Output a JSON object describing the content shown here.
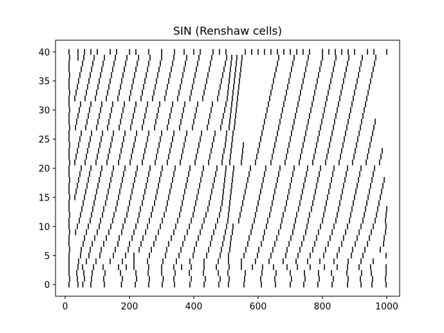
{
  "chart_data": {
    "type": "raster",
    "title": "SIN (Renshaw cells)",
    "xlabel": "",
    "ylabel": "",
    "xlim": [
      -30,
      1040
    ],
    "ylim": [
      -2,
      42
    ],
    "x_ticks": [
      0,
      200,
      400,
      600,
      800,
      1000
    ],
    "x_tick_labels": [
      "0",
      "200",
      "400",
      "600",
      "800",
      "1000"
    ],
    "y_ticks": [
      0,
      5,
      10,
      15,
      20,
      25,
      30,
      35,
      40
    ],
    "y_tick_labels": [
      "0",
      "5",
      "10",
      "15",
      "20",
      "25",
      "30",
      "35",
      "40"
    ],
    "grid": false,
    "color": "#000000",
    "neurons": 41,
    "spike_trains": [
      {
        "neuron": 0,
        "times": [
          12,
          40,
          55,
          80,
          122,
          175,
          218,
          260,
          302,
          340,
          388,
          432,
          478,
          508,
          556,
          610,
          654,
          700,
          742,
          786,
          830,
          878,
          920,
          954,
          998
        ]
      },
      {
        "neuron": 1,
        "times": [
          14,
          38,
          60,
          82,
          120,
          178,
          222,
          262,
          305,
          338,
          392,
          436,
          482,
          510,
          558,
          608,
          652,
          704,
          746,
          790,
          834,
          880,
          918,
          956,
          996
        ]
      },
      {
        "neuron": 2,
        "times": [
          12,
          36,
          58,
          84,
          124,
          172,
          220,
          258,
          300,
          342,
          386,
          430,
          476,
          506,
          560,
          612,
          656,
          700,
          744,
          788,
          828,
          876,
          922,
          952,
          998
        ]
      },
      {
        "neuron": 3,
        "times": [
          12,
          40,
          54,
          88,
          118,
          166,
          190,
          214,
          260,
          300,
          338,
          362,
          392,
          432,
          470,
          510,
          548,
          582,
          614,
          648,
          690,
          722,
          762,
          806,
          846,
          878,
          914,
          950,
          998
        ]
      },
      {
        "neuron": 4,
        "times": [
          12,
          42,
          66,
          96,
          140,
          178,
          214,
          256,
          304,
          346,
          388,
          432,
          476,
          508,
          548,
          592,
          634,
          678,
          718,
          754,
          792,
          836,
          880,
          920,
          958
        ]
      },
      {
        "neuron": 5,
        "times": [
          12,
          48,
          74,
          108,
          150,
          188,
          214,
          262,
          312,
          354,
          398,
          440,
          482,
          508,
          556,
          598,
          640,
          686,
          724,
          762,
          804,
          846,
          890,
          926,
          998
        ]
      },
      {
        "neuron": 6,
        "times": [
          14,
          50,
          78,
          112,
          156,
          196,
          230,
          268,
          316,
          360,
          402,
          446,
          486,
          512,
          562,
          602,
          646,
          690,
          730,
          770,
          810,
          852,
          894,
          932,
          980
        ]
      },
      {
        "neuron": 7,
        "times": [
          12,
          56,
          84,
          120,
          164,
          200,
          236,
          276,
          322,
          366,
          408,
          452,
          490,
          514,
          568,
          610,
          652,
          696,
          736,
          776,
          818,
          860,
          902,
          940,
          990
        ]
      },
      {
        "neuron": 8,
        "times": [
          12,
          60,
          92,
          128,
          168,
          208,
          242,
          282,
          330,
          372,
          414,
          456,
          494,
          516,
          572,
          616,
          658,
          702,
          742,
          782,
          824,
          866,
          908,
          946,
          992
        ]
      },
      {
        "neuron": 9,
        "times": [
          14,
          32,
          66,
          100,
          136,
          176,
          214,
          250,
          290,
          338,
          380,
          420,
          462,
          498,
          520,
          578,
          620,
          664,
          708,
          748,
          788,
          830,
          872,
          914,
          952,
          996
        ]
      },
      {
        "neuron": 10,
        "times": [
          12,
          38,
          72,
          106,
          142,
          180,
          220,
          256,
          296,
          344,
          386,
          426,
          468,
          502,
          522,
          582,
          626,
          670,
          712,
          752,
          794,
          836,
          878,
          920,
          958,
          998
        ]
      },
      {
        "neuron": 11,
        "times": [
          12,
          44,
          78,
          110,
          148,
          186,
          226,
          262,
          302,
          350,
          392,
          432,
          474,
          506,
          540,
          588,
          630,
          674,
          716,
          756,
          800,
          842,
          884,
          926,
          964,
          996
        ]
      },
      {
        "neuron": 12,
        "times": [
          14,
          48,
          82,
          116,
          152,
          192,
          230,
          268,
          308,
          356,
          398,
          438,
          480,
          508,
          544,
          592,
          636,
          678,
          720,
          760,
          804,
          846,
          888,
          930,
          968,
          998
        ]
      },
      {
        "neuron": 13,
        "times": [
          12,
          52,
          86,
          120,
          158,
          196,
          234,
          272,
          314,
          360,
          402,
          444,
          484,
          510,
          548,
          596,
          640,
          684,
          726,
          766,
          808,
          850,
          892,
          934,
          972,
          1000
        ]
      },
      {
        "neuron": 14,
        "times": [
          12,
          56,
          90,
          126,
          162,
          200,
          240,
          278,
          318,
          364,
          406,
          448,
          488,
          512,
          552,
          600,
          644,
          688,
          730,
          770,
          812,
          854,
          896,
          938,
          976
        ]
      },
      {
        "neuron": 15,
        "times": [
          14,
          30,
          60,
          94,
          130,
          166,
          204,
          244,
          282,
          322,
          368,
          410,
          452,
          490,
          514,
          556,
          604,
          648,
          692,
          734,
          774,
          816,
          858,
          900,
          942,
          980
        ]
      },
      {
        "neuron": 16,
        "times": [
          12,
          34,
          64,
          98,
          134,
          170,
          208,
          248,
          286,
          326,
          372,
          414,
          456,
          492,
          516,
          560,
          608,
          652,
          696,
          738,
          778,
          820,
          862,
          904,
          946,
          984
        ]
      },
      {
        "neuron": 17,
        "times": [
          12,
          38,
          68,
          102,
          138,
          174,
          212,
          252,
          290,
          330,
          376,
          418,
          460,
          494,
          518,
          564,
          612,
          656,
          700,
          742,
          782,
          824,
          866,
          908,
          950,
          988
        ]
      },
      {
        "neuron": 18,
        "times": [
          14,
          42,
          72,
          106,
          142,
          178,
          216,
          256,
          294,
          334,
          380,
          422,
          464,
          496,
          520,
          568,
          616,
          660,
          704,
          746,
          786,
          828,
          870,
          912,
          954,
          992
        ]
      },
      {
        "neuron": 19,
        "times": [
          12,
          46,
          76,
          110,
          146,
          182,
          220,
          260,
          298,
          338,
          384,
          426,
          468,
          498,
          522,
          572,
          620,
          664,
          708,
          750,
          790,
          832,
          874,
          916,
          958
        ]
      },
      {
        "neuron": 20,
        "times": [
          12,
          50,
          80,
          114,
          150,
          186,
          224,
          264,
          302,
          342,
          388,
          430,
          472,
          500,
          524,
          576,
          624,
          668,
          712,
          754,
          794,
          836,
          878,
          920,
          962
        ]
      },
      {
        "neuron": 21,
        "times": [
          14,
          30,
          62,
          96,
          130,
          166,
          202,
          240,
          280,
          318,
          358,
          404,
          446,
          488,
          512,
          548,
          592,
          640,
          684,
          728,
          770,
          810,
          852,
          894,
          936,
          978
        ]
      },
      {
        "neuron": 22,
        "times": [
          12,
          34,
          66,
          100,
          134,
          170,
          206,
          244,
          284,
          322,
          362,
          408,
          450,
          490,
          514,
          550,
          596,
          644,
          688,
          732,
          774,
          814,
          856,
          898,
          940,
          982
        ]
      },
      {
        "neuron": 23,
        "times": [
          12,
          38,
          70,
          104,
          138,
          174,
          210,
          248,
          288,
          326,
          366,
          412,
          454,
          494,
          516,
          552,
          600,
          648,
          692,
          736,
          778,
          818,
          860,
          902,
          944,
          986
        ]
      },
      {
        "neuron": 24,
        "times": [
          14,
          42,
          74,
          108,
          142,
          178,
          214,
          252,
          292,
          330,
          370,
          416,
          458,
          498,
          518,
          554,
          604,
          652,
          696,
          740,
          782,
          822,
          864,
          906,
          948
        ]
      },
      {
        "neuron": 25,
        "times": [
          12,
          46,
          78,
          112,
          146,
          182,
          218,
          256,
          296,
          334,
          374,
          420,
          462,
          500,
          520,
          608,
          656,
          700,
          744,
          786,
          826,
          868,
          910,
          952
        ]
      },
      {
        "neuron": 26,
        "times": [
          12,
          50,
          82,
          116,
          150,
          186,
          222,
          260,
          300,
          338,
          378,
          424,
          466,
          502,
          522,
          612,
          660,
          704,
          748,
          790,
          830,
          872,
          914,
          956
        ]
      },
      {
        "neuron": 27,
        "times": [
          14,
          32,
          64,
          98,
          132,
          168,
          204,
          240,
          278,
          318,
          356,
          396,
          442,
          484,
          510,
          526,
          616,
          664,
          708,
          752,
          794,
          834,
          876,
          918,
          960
        ]
      },
      {
        "neuron": 28,
        "times": [
          12,
          36,
          68,
          102,
          136,
          172,
          208,
          244,
          282,
          322,
          360,
          400,
          446,
          488,
          512,
          528,
          620,
          668,
          712,
          756,
          798,
          838,
          880,
          922,
          964
        ]
      },
      {
        "neuron": 29,
        "times": [
          12,
          40,
          72,
          106,
          140,
          176,
          212,
          248,
          286,
          326,
          364,
          404,
          450,
          492,
          514,
          530,
          624,
          672,
          716,
          760,
          802,
          842,
          884,
          926
        ]
      },
      {
        "neuron": 30,
        "times": [
          14,
          44,
          76,
          110,
          144,
          180,
          216,
          252,
          290,
          330,
          368,
          408,
          454,
          496,
          516,
          532,
          628,
          676,
          720,
          764,
          806,
          846,
          888,
          930
        ]
      },
      {
        "neuron": 31,
        "times": [
          12,
          48,
          80,
          114,
          148,
          184,
          220,
          256,
          294,
          334,
          372,
          412,
          458,
          500,
          518,
          534,
          632,
          680,
          724,
          768,
          810,
          850,
          892,
          934
        ]
      },
      {
        "neuron": 32,
        "times": [
          12,
          30,
          62,
          94,
          128,
          164,
          200,
          236,
          272,
          310,
          350,
          388,
          428,
          474,
          504,
          520,
          536,
          636,
          684,
          728,
          772,
          814,
          854,
          896,
          938
        ]
      },
      {
        "neuron": 33,
        "times": [
          14,
          34,
          66,
          98,
          132,
          168,
          204,
          240,
          276,
          314,
          354,
          392,
          432,
          478,
          506,
          522,
          538,
          640,
          688,
          732,
          776,
          818,
          858,
          900,
          942
        ]
      },
      {
        "neuron": 34,
        "times": [
          12,
          38,
          70,
          102,
          136,
          172,
          208,
          244,
          280,
          318,
          358,
          396,
          436,
          482,
          508,
          524,
          540,
          644,
          692,
          736,
          780,
          822,
          862,
          904,
          946
        ]
      },
      {
        "neuron": 35,
        "times": [
          12,
          42,
          74,
          106,
          140,
          176,
          212,
          248,
          284,
          322,
          362,
          400,
          440,
          486,
          510,
          526,
          542,
          648,
          696,
          740,
          784,
          826,
          866,
          908,
          950
        ]
      },
      {
        "neuron": 36,
        "times": [
          14,
          46,
          78,
          110,
          144,
          180,
          216,
          252,
          288,
          326,
          366,
          404,
          444,
          490,
          512,
          528,
          544,
          652,
          700,
          744,
          788,
          830,
          870,
          912,
          954
        ]
      },
      {
        "neuron": 37,
        "times": [
          12,
          50,
          82,
          114,
          148,
          184,
          220,
          256,
          292,
          330,
          370,
          408,
          448,
          494,
          514,
          530,
          546,
          656,
          704,
          748,
          792,
          834,
          874,
          916,
          958
        ]
      },
      {
        "neuron": 38,
        "times": [
          12,
          54,
          86,
          118,
          152,
          188,
          224,
          260,
          296,
          334,
          374,
          412,
          452,
          498,
          516,
          532,
          548,
          660,
          708,
          752,
          796,
          838,
          878,
          920,
          962
        ]
      },
      {
        "neuron": 39,
        "times": [
          14,
          40,
          58,
          90,
          122,
          156,
          192,
          228,
          264,
          300,
          338,
          378,
          416,
          456,
          502,
          518,
          534,
          550,
          664,
          712,
          756,
          800,
          842,
          882,
          924,
          966
        ]
      },
      {
        "neuron": 40,
        "times": [
          12,
          40,
          60,
          80,
          100,
          140,
          160,
          200,
          220,
          260,
          300,
          340,
          370,
          400,
          420,
          460,
          480,
          500,
          560,
          580,
          600,
          620,
          640,
          660,
          680,
          700,
          720,
          740,
          760,
          800,
          820,
          840,
          860,
          880,
          900,
          940,
          960,
          1000
        ]
      }
    ]
  }
}
